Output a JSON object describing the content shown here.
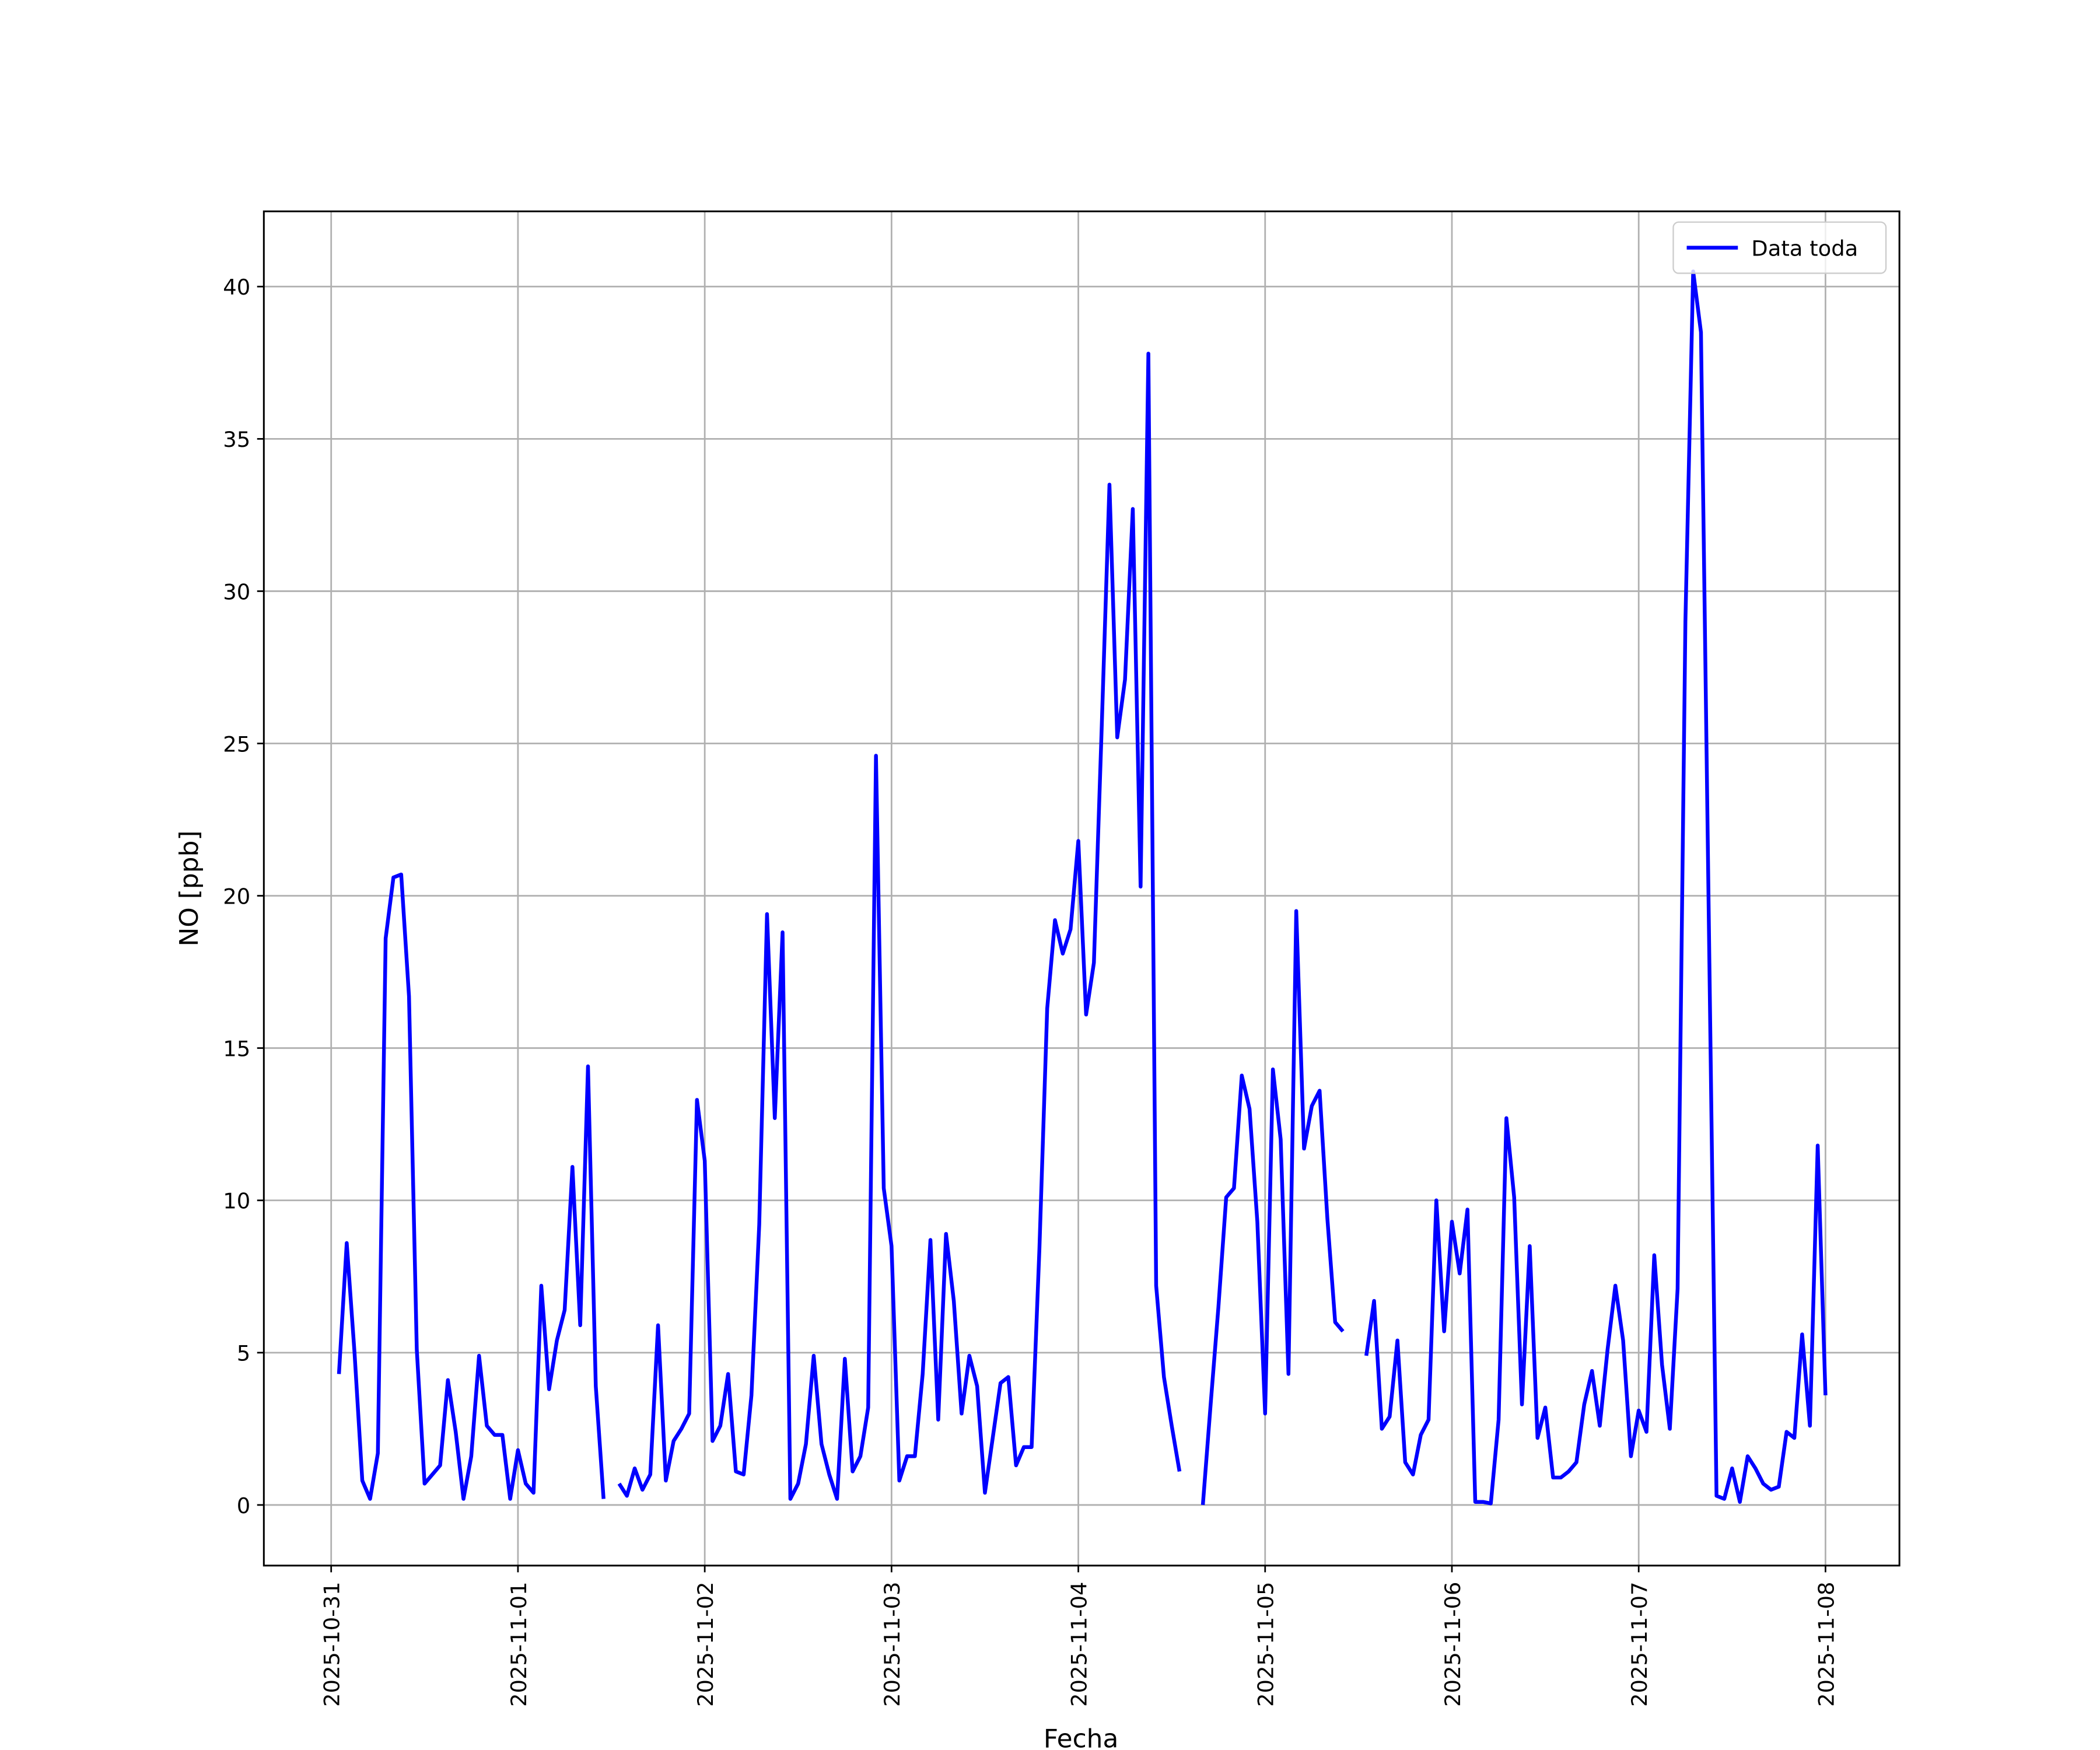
{
  "chart_data": {
    "type": "line",
    "xlabel": "Fecha",
    "ylabel": "NO [ppb]",
    "x": [
      1,
      2,
      3,
      4,
      5,
      6,
      7,
      8,
      9,
      10,
      11,
      12,
      13,
      14,
      15,
      16,
      17,
      18,
      19,
      20,
      21,
      22,
      23,
      24,
      25,
      26,
      27,
      28,
      29,
      30,
      31,
      32,
      33,
      34,
      35,
      36,
      37,
      38,
      39,
      40,
      41,
      42,
      43,
      44,
      45,
      46,
      47,
      48,
      49,
      50,
      51,
      52,
      53,
      54,
      55,
      56,
      57,
      58,
      59,
      60,
      61,
      62,
      63,
      64,
      65,
      66,
      67,
      68,
      69,
      70,
      71,
      72,
      73,
      74,
      75,
      76,
      77,
      78,
      79,
      80,
      81,
      82,
      83,
      84,
      85,
      86,
      87,
      88,
      89,
      90,
      91,
      92,
      93,
      94,
      95,
      96,
      97,
      98,
      99,
      100,
      101,
      102,
      103,
      104,
      105,
      106,
      107,
      108,
      109,
      110,
      111,
      112,
      113,
      114,
      115,
      116,
      117,
      118,
      119,
      120,
      121,
      122,
      123,
      124,
      125,
      126,
      127,
      128,
      129,
      130,
      131,
      132,
      133,
      134,
      135,
      136,
      137,
      138,
      139,
      140,
      141,
      142,
      143,
      144,
      145,
      146,
      147,
      148,
      149,
      150,
      151,
      152,
      153,
      154,
      155,
      156,
      157,
      158,
      159,
      160,
      161,
      162,
      163,
      164,
      165,
      166,
      167,
      168,
      169,
      170,
      171,
      172,
      173,
      174,
      175,
      176,
      177,
      178,
      179,
      180,
      181,
      182,
      183,
      184,
      185,
      186,
      187,
      188,
      189,
      190,
      191,
      192
    ],
    "series": [
      {
        "name": "Data toda",
        "color": "#0000ff",
        "values": [
          4.3,
          8.6,
          5.0,
          0.8,
          0.2,
          1.7,
          18.6,
          20.6,
          20.7,
          16.7,
          5.1,
          0.7,
          1.0,
          1.3,
          4.1,
          2.4,
          0.2,
          1.6,
          4.9,
          2.6,
          2.3,
          2.3,
          0.2,
          1.8,
          0.7,
          0.4,
          7.2,
          3.8,
          5.4,
          6.4,
          11.1,
          5.9,
          14.4,
          3.9,
          0.2,
          null,
          0.7,
          0.3,
          1.2,
          0.5,
          1.0,
          5.9,
          0.8,
          2.1,
          2.5,
          3.0,
          13.3,
          11.3,
          2.1,
          2.6,
          4.3,
          1.1,
          1.0,
          3.6,
          9.2,
          19.4,
          12.7,
          18.8,
          0.2,
          0.7,
          2.0,
          4.9,
          2.0,
          1.0,
          0.2,
          4.8,
          1.1,
          1.6,
          3.2,
          24.6,
          10.4,
          8.5,
          0.8,
          1.6,
          1.6,
          4.3,
          8.7,
          2.8,
          8.9,
          6.7,
          3.0,
          4.9,
          3.9,
          0.4,
          2.2,
          4.0,
          4.2,
          1.3,
          1.9,
          1.9,
          8.4,
          16.3,
          19.2,
          18.1,
          18.9,
          21.8,
          16.1,
          17.8,
          25.5,
          33.5,
          25.2,
          27.1,
          32.7,
          20.3,
          37.8,
          7.2,
          4.2,
          2.6,
          1.1,
          null,
          null,
          0.0,
          3.3,
          6.5,
          10.1,
          10.4,
          14.1,
          13.0,
          9.3,
          3.0,
          14.3,
          12.0,
          4.3,
          19.5,
          11.7,
          13.1,
          13.6,
          9.4,
          6.0,
          5.7,
          null,
          null,
          4.9,
          6.7,
          2.5,
          2.9,
          5.4,
          1.4,
          1.0,
          2.3,
          2.8,
          10.0,
          5.7,
          9.3,
          7.6,
          9.7,
          0.1,
          0.1,
          0.05,
          2.8,
          12.7,
          10.1,
          3.3,
          8.5,
          2.2,
          3.2,
          0.9,
          0.9,
          1.1,
          1.4,
          3.3,
          4.4,
          2.6,
          5.1,
          7.2,
          5.4,
          1.6,
          3.1,
          2.4,
          8.2,
          4.6,
          2.5,
          7.1,
          29.0,
          40.5,
          38.5,
          19.4,
          0.3,
          0.2,
          1.2,
          0.1,
          1.6,
          1.2,
          0.7,
          0.5,
          0.6,
          2.4,
          2.2,
          5.6,
          2.6,
          11.8,
          3.6
        ]
      }
    ],
    "xlim": [
      -8.65,
      201.5
    ],
    "xticks": [
      {
        "value": 0,
        "label": "2025-10-31"
      },
      {
        "value": 24,
        "label": "2025-11-01"
      },
      {
        "value": 48,
        "label": "2025-11-02"
      },
      {
        "value": 72,
        "label": "2025-11-03"
      },
      {
        "value": 96,
        "label": "2025-11-04"
      },
      {
        "value": 120,
        "label": "2025-11-05"
      },
      {
        "value": 144,
        "label": "2025-11-06"
      },
      {
        "value": 168,
        "label": "2025-11-07"
      },
      {
        "value": 192,
        "label": "2025-11-08"
      }
    ],
    "ylim": [
      -1.99,
      42.47
    ],
    "yticks": [
      0,
      5,
      10,
      15,
      20,
      25,
      30,
      35,
      40
    ],
    "grid": true,
    "legend": "upper right"
  }
}
